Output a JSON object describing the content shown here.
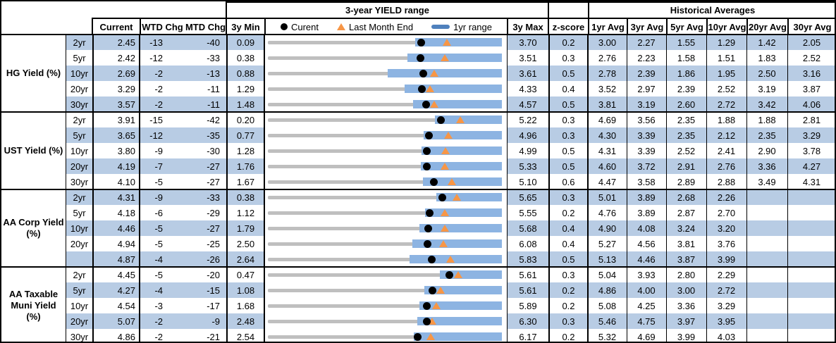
{
  "colors": {
    "stripe": "#b8cce4",
    "range_bar": "#8db4e2",
    "legend_bar": "#4f81bd",
    "track": "#bfbfbf",
    "triangle": "#f79646",
    "dot": "#000000",
    "border": "#000000"
  },
  "header": {
    "range_title": "3-year YIELD range",
    "hist_title": "Historical Averages",
    "current": "Current",
    "wtd": "WTD Chg",
    "mtd": "MTD Chg",
    "min": "3y Min",
    "max": "3y Max",
    "z": "z-score",
    "avgs": [
      "1yr Avg",
      "3yr Avg",
      "5yr Avg",
      "10yr Avg",
      "20yr Avg",
      "30yr Avg"
    ],
    "legend": {
      "current": "Curent",
      "lme": "Last Month End",
      "range": "1yr range"
    }
  },
  "chart_data": {
    "type": "table",
    "embedded_chart_type": "bullet-range",
    "note": "Each row shows a 3y min-max track (gray), 1yr range (blue bar), current value (black dot), last month end (orange triangle). range_1yr low and last_month_end are estimated from marker positions.",
    "groups": [
      {
        "label": "HG Yield (%)",
        "rows": [
          {
            "tenor": "2yr",
            "current": "2.45",
            "wtd_chg": "-13",
            "mtd_chg": "-40",
            "min_3y": "0.09",
            "max_3y": "3.70",
            "z_score": "0.2",
            "avgs": [
              "3.00",
              "2.27",
              "1.55",
              "1.29",
              "1.42",
              "2.05"
            ],
            "range_1yr": [
              2.36,
              3.7
            ],
            "last_month_end": 2.85
          },
          {
            "tenor": "5yr",
            "current": "2.42",
            "wtd_chg": "-12",
            "mtd_chg": "-33",
            "min_3y": "0.38",
            "max_3y": "3.51",
            "z_score": "0.3",
            "avgs": [
              "2.76",
              "2.23",
              "1.58",
              "1.51",
              "1.83",
              "2.52"
            ],
            "range_1yr": [
              2.25,
              3.51
            ],
            "last_month_end": 2.75
          },
          {
            "tenor": "10yr",
            "current": "2.69",
            "wtd_chg": "-2",
            "mtd_chg": "-13",
            "min_3y": "0.88",
            "max_3y": "3.61",
            "z_score": "0.5",
            "avgs": [
              "2.78",
              "2.39",
              "1.86",
              "1.95",
              "2.50",
              "3.16"
            ],
            "range_1yr": [
              2.28,
              3.61
            ],
            "last_month_end": 2.82
          },
          {
            "tenor": "20yr",
            "current": "3.29",
            "wtd_chg": "-2",
            "mtd_chg": "-11",
            "min_3y": "1.29",
            "max_3y": "4.33",
            "z_score": "0.4",
            "avgs": [
              "3.52",
              "2.97",
              "2.39",
              "2.52",
              "3.19",
              "3.87"
            ],
            "range_1yr": [
              3.07,
              4.33
            ],
            "last_month_end": 3.4
          },
          {
            "tenor": "30yr",
            "current": "3.57",
            "wtd_chg": "-2",
            "mtd_chg": "-11",
            "min_3y": "1.48",
            "max_3y": "4.57",
            "z_score": "0.5",
            "avgs": [
              "3.81",
              "3.19",
              "2.60",
              "2.72",
              "3.42",
              "4.06"
            ],
            "range_1yr": [
              3.4,
              4.57
            ],
            "last_month_end": 3.68
          }
        ]
      },
      {
        "label": "UST Yield (%)",
        "rows": [
          {
            "tenor": "2yr",
            "current": "3.91",
            "wtd_chg": "-15",
            "mtd_chg": "-42",
            "min_3y": "0.20",
            "max_3y": "5.22",
            "z_score": "0.3",
            "avgs": [
              "4.69",
              "3.56",
              "2.35",
              "1.88",
              "1.88",
              "2.81"
            ],
            "range_1yr": [
              3.78,
              5.22
            ],
            "last_month_end": 4.33
          },
          {
            "tenor": "5yr",
            "current": "3.65",
            "wtd_chg": "-12",
            "mtd_chg": "-35",
            "min_3y": "0.77",
            "max_3y": "4.96",
            "z_score": "0.3",
            "avgs": [
              "4.30",
              "3.39",
              "2.35",
              "2.12",
              "2.35",
              "3.29"
            ],
            "range_1yr": [
              3.56,
              4.96
            ],
            "last_month_end": 4.0
          },
          {
            "tenor": "10yr",
            "current": "3.80",
            "wtd_chg": "-9",
            "mtd_chg": "-30",
            "min_3y": "1.28",
            "max_3y": "4.99",
            "z_score": "0.5",
            "avgs": [
              "4.31",
              "3.39",
              "2.52",
              "2.41",
              "2.90",
              "3.78"
            ],
            "range_1yr": [
              3.72,
              4.99
            ],
            "last_month_end": 4.1
          },
          {
            "tenor": "20yr",
            "current": "4.19",
            "wtd_chg": "-7",
            "mtd_chg": "-27",
            "min_3y": "1.76",
            "max_3y": "5.33",
            "z_score": "0.5",
            "avgs": [
              "4.60",
              "3.72",
              "2.91",
              "2.76",
              "3.36",
              "4.27"
            ],
            "range_1yr": [
              4.09,
              5.33
            ],
            "last_month_end": 4.46
          },
          {
            "tenor": "30yr",
            "current": "4.10",
            "wtd_chg": "-5",
            "mtd_chg": "-27",
            "min_3y": "1.67",
            "max_3y": "5.10",
            "z_score": "0.6",
            "avgs": [
              "4.47",
              "3.58",
              "2.89",
              "2.88",
              "3.49",
              "4.31"
            ],
            "range_1yr": [
              3.94,
              5.1
            ],
            "last_month_end": 4.37
          }
        ]
      },
      {
        "label": "AA Corp Yield (%)",
        "rows": [
          {
            "tenor": "2yr",
            "current": "4.31",
            "wtd_chg": "-9",
            "mtd_chg": "-33",
            "min_3y": "0.38",
            "max_3y": "5.65",
            "z_score": "0.3",
            "avgs": [
              "5.01",
              "3.89",
              "2.68",
              "2.26",
              "",
              ""
            ],
            "range_1yr": [
              4.18,
              5.65
            ],
            "last_month_end": 4.64
          },
          {
            "tenor": "5yr",
            "current": "4.18",
            "wtd_chg": "-6",
            "mtd_chg": "-29",
            "min_3y": "1.12",
            "max_3y": "5.55",
            "z_score": "0.2",
            "avgs": [
              "4.76",
              "3.89",
              "2.87",
              "2.70",
              "",
              ""
            ],
            "range_1yr": [
              4.1,
              5.55
            ],
            "last_month_end": 4.47
          },
          {
            "tenor": "10yr",
            "current": "4.46",
            "wtd_chg": "-5",
            "mtd_chg": "-27",
            "min_3y": "1.79",
            "max_3y": "5.68",
            "z_score": "0.4",
            "avgs": [
              "4.90",
              "4.08",
              "3.24",
              "3.20",
              "",
              ""
            ],
            "range_1yr": [
              4.31,
              5.68
            ],
            "last_month_end": 4.73
          },
          {
            "tenor": "20yr",
            "current": "4.94",
            "wtd_chg": "-5",
            "mtd_chg": "-25",
            "min_3y": "2.50",
            "max_3y": "6.08",
            "z_score": "0.4",
            "avgs": [
              "5.27",
              "4.56",
              "3.81",
              "3.76",
              "",
              ""
            ],
            "range_1yr": [
              4.71,
              6.08
            ],
            "last_month_end": 5.19
          },
          {
            "tenor": "",
            "current": "4.87",
            "wtd_chg": "-4",
            "mtd_chg": "-26",
            "min_3y": "2.64",
            "max_3y": "5.83",
            "z_score": "0.5",
            "avgs": [
              "5.13",
              "4.46",
              "3.87",
              "3.99",
              "",
              ""
            ],
            "range_1yr": [
              4.57,
              5.83
            ],
            "last_month_end": 5.13
          }
        ]
      },
      {
        "label": "AA Taxable Muni Yield (%)",
        "rows": [
          {
            "tenor": "2yr",
            "current": "4.45",
            "wtd_chg": "-5",
            "mtd_chg": "-20",
            "min_3y": "0.47",
            "max_3y": "5.61",
            "z_score": "0.3",
            "avgs": [
              "5.04",
              "3.93",
              "2.80",
              "2.29",
              "",
              ""
            ],
            "range_1yr": [
              4.25,
              5.61
            ],
            "last_month_end": 4.65
          },
          {
            "tenor": "5yr",
            "current": "4.27",
            "wtd_chg": "-4",
            "mtd_chg": "-15",
            "min_3y": "1.08",
            "max_3y": "5.61",
            "z_score": "0.2",
            "avgs": [
              "4.86",
              "4.00",
              "3.00",
              "2.72",
              "",
              ""
            ],
            "range_1yr": [
              4.11,
              5.61
            ],
            "last_month_end": 4.42
          },
          {
            "tenor": "10yr",
            "current": "4.54",
            "wtd_chg": "-3",
            "mtd_chg": "-17",
            "min_3y": "1.68",
            "max_3y": "5.89",
            "z_score": "0.2",
            "avgs": [
              "5.08",
              "4.25",
              "3.36",
              "3.29",
              "",
              ""
            ],
            "range_1yr": [
              4.41,
              5.89
            ],
            "last_month_end": 4.71
          },
          {
            "tenor": "20yr",
            "current": "5.07",
            "wtd_chg": "-2",
            "mtd_chg": "-9",
            "min_3y": "2.48",
            "max_3y": "6.30",
            "z_score": "0.3",
            "avgs": [
              "5.46",
              "4.75",
              "3.97",
              "3.95",
              "",
              ""
            ],
            "range_1yr": [
              4.92,
              6.3
            ],
            "last_month_end": 5.16
          },
          {
            "tenor": "30yr",
            "current": "4.86",
            "wtd_chg": "-2",
            "mtd_chg": "-21",
            "min_3y": "2.54",
            "max_3y": "6.17",
            "z_score": "0.2",
            "avgs": [
              "5.32",
              "4.69",
              "3.99",
              "4.03",
              "",
              ""
            ],
            "range_1yr": [
              4.8,
              6.17
            ],
            "last_month_end": 5.07
          }
        ]
      }
    ]
  }
}
